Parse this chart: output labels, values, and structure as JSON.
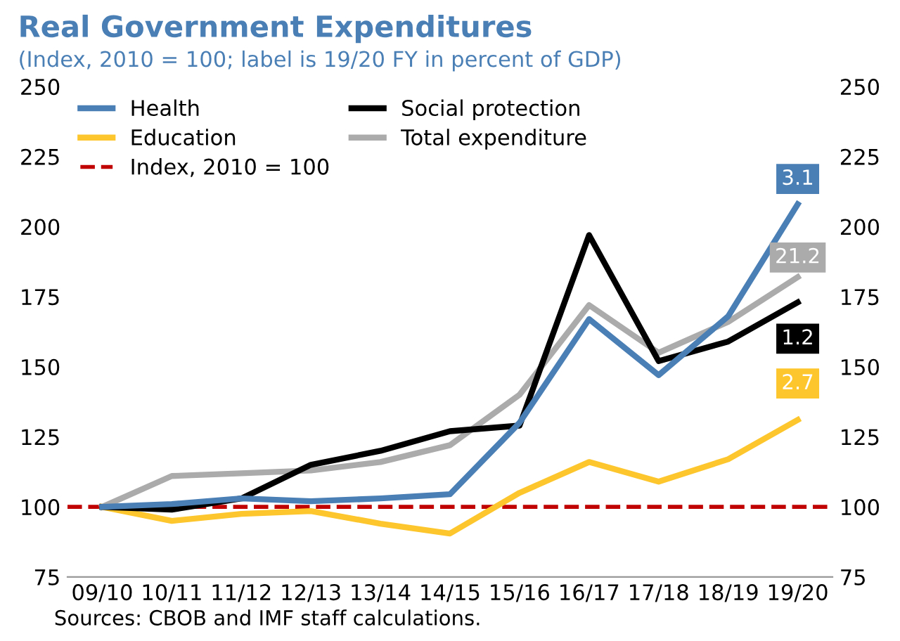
{
  "chart_data": {
    "type": "line",
    "title": "Real Government Expenditures",
    "subtitle": "(Index, 2010 = 100; label is 19/20 FY in percent of GDP)",
    "categories": [
      "09/10",
      "10/11",
      "11/12",
      "12/13",
      "13/14",
      "14/15",
      "15/16",
      "16/17",
      "17/18",
      "18/19",
      "19/20"
    ],
    "series": [
      {
        "name": "Health",
        "color": "#4a7fb5",
        "values": [
          100,
          101,
          103,
          102,
          103,
          104.5,
          130,
          167,
          147,
          168,
          208
        ]
      },
      {
        "name": "Social protection",
        "color": "#000000",
        "values": [
          100,
          99,
          103,
          115,
          120,
          127,
          129,
          197,
          152,
          159,
          173
        ]
      },
      {
        "name": "Education",
        "color": "#fcc62c",
        "values": [
          100,
          95,
          97.5,
          98.5,
          94,
          90.5,
          105,
          116,
          109,
          117,
          131
        ]
      },
      {
        "name": "Total expenditure",
        "color": "#ababab",
        "values": [
          100,
          111,
          112,
          113,
          116,
          122,
          140,
          172,
          155,
          166,
          182
        ]
      }
    ],
    "ref_lines": [
      {
        "axis": "y",
        "value": 100,
        "label": "Index, 2010 = 100",
        "color": "#c00000",
        "line_style": "dashed"
      }
    ],
    "ylim": [
      75,
      250
    ],
    "yticks": [
      75,
      100,
      125,
      150,
      175,
      200,
      225,
      250
    ],
    "y2lim": [
      75,
      250
    ],
    "y2ticks": [
      75,
      100,
      125,
      150,
      175,
      200,
      225,
      250
    ],
    "legend": "top left",
    "grid": false,
    "marker": "none",
    "line_style": "solid",
    "annotations": [
      {
        "text": "3.1",
        "x": "19/20",
        "y": 217
      },
      {
        "text": "1.2",
        "x": "19/20",
        "y": 160
      },
      {
        "text": "2.7",
        "x": "19/20",
        "y": 144
      },
      {
        "text": "21.2",
        "x": "19/20",
        "y": 189
      },
      "Sources: CBOB and IMF staff calculations."
    ]
  }
}
